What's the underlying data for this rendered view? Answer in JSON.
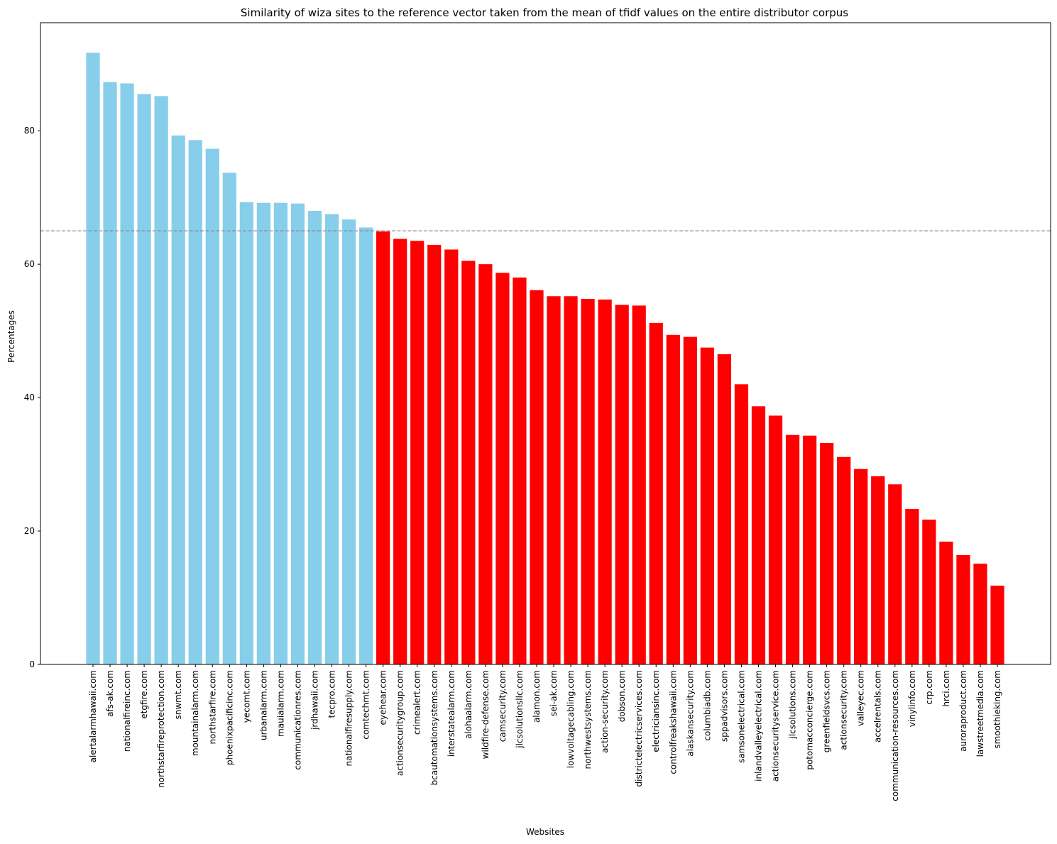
{
  "chart_data": {
    "type": "bar",
    "title": "Similarity of wiza sites to the reference vector taken from the mean of tfidf values on the entire distributor corpus",
    "xlabel": "Websites",
    "ylabel": "Percentages",
    "ylim": [
      0,
      96.2
    ],
    "yticks": [
      0,
      20,
      40,
      60,
      80
    ],
    "threshold": 65,
    "threshold_style": "dashed",
    "colors": {
      "above": "#87ceeb",
      "below": "#ff0000",
      "threshold_line": "#808080"
    },
    "grid": false,
    "categories": [
      "alertalarmhawaii.com",
      "afs-ak.com",
      "nationalfireinc.com",
      "etgfire.com",
      "northstarfireprotection.com",
      "snwmt.com",
      "mountainalarm.com",
      "northstarfire.com",
      "phoenixpacificinc.com",
      "yecomt.com",
      "urbanalarm.com",
      "mauialarm.com",
      "communicationres.com",
      "jrdhawaii.com",
      "tecpro.com",
      "nationalfiresupply.com",
      "comtechmt.com",
      "eyehear.com",
      "actionsecuritygroup.com",
      "crimealert.com",
      "bcautomationsystems.com",
      "interstatealarm.com",
      "alohaalarm.com",
      "wildfire-defense.com",
      "camsecurity.com",
      "jlcsolutionsllc.com",
      "alamon.com",
      "sei-ak.com",
      "lowvoltagecabling.com",
      "northwestsystems.com",
      "action-security.com",
      "dobson.com",
      "districtelectricservices.com",
      "electriciansinc.com",
      "controlfreakshawaii.com",
      "alaskansecurity.com",
      "columbiadb.com",
      "sppadvisors.com",
      "samsonelectrical.com",
      "inlandvalleyelectrical.com",
      "actionsecurityservice.com",
      "jlcsolutions.com",
      "potomacconcierge.com",
      "greenfieldsvcs.com",
      "actionsecurity.com",
      "valleyec.com",
      "accelrentals.com",
      "communication-resources.com",
      "vinylinfo.com",
      "crp.com",
      "hrci.com",
      "auroraproduct.com",
      "lawstreetmedia.com",
      "smoothieking.com"
    ],
    "values": [
      91.7,
      87.3,
      87.1,
      85.5,
      85.2,
      79.3,
      78.6,
      77.3,
      73.7,
      69.3,
      69.2,
      69.2,
      69.1,
      68.0,
      67.5,
      66.7,
      65.5,
      64.9,
      63.8,
      63.5,
      62.9,
      62.2,
      60.5,
      60.0,
      58.7,
      58.0,
      56.1,
      55.2,
      55.2,
      54.8,
      54.7,
      53.9,
      53.8,
      51.2,
      49.4,
      49.1,
      47.5,
      46.5,
      42.0,
      38.7,
      37.3,
      34.4,
      34.3,
      33.2,
      31.1,
      29.3,
      28.2,
      27.0,
      23.3,
      21.7,
      18.4,
      16.4,
      15.1,
      11.8
    ]
  }
}
